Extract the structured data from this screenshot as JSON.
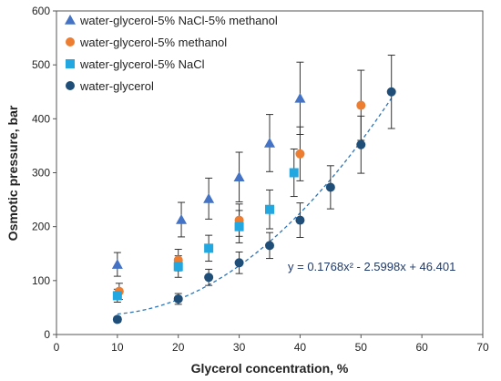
{
  "chart_data": {
    "type": "scatter",
    "xlabel": "Glycerol concentration, %",
    "ylabel": "Osmotic pressure, bar",
    "xlim": [
      0,
      70
    ],
    "ylim": [
      0,
      600
    ],
    "xticks": [
      0,
      10,
      20,
      30,
      40,
      50,
      60,
      70
    ],
    "yticks": [
      0,
      100,
      200,
      300,
      400,
      500,
      600
    ],
    "grid": false,
    "legend_position": "top-left",
    "series": [
      {
        "name": "water-glycerol-5% NaCl-5% methanol",
        "marker": "triangle",
        "color": "#4472c4",
        "x": [
          10,
          20.5,
          25,
          30,
          35,
          40
        ],
        "y": [
          130,
          213,
          252,
          292,
          355,
          438
        ],
        "error": [
          22,
          32,
          38,
          46,
          53,
          67
        ]
      },
      {
        "name": "water-glycerol-5% methanol",
        "marker": "circle",
        "color": "#ed7d31",
        "x": [
          10.3,
          20,
          30,
          40,
          50
        ],
        "y": [
          80,
          138,
          212,
          335,
          425
        ],
        "error": [
          15,
          20,
          30,
          50,
          65
        ]
      },
      {
        "name": "water-glycerol-5% NaCl",
        "marker": "square",
        "color": "#22a7e0",
        "x": [
          10,
          20,
          25,
          30,
          35,
          39
        ],
        "y": [
          72,
          126,
          160,
          200,
          232,
          300
        ],
        "error": [
          12,
          20,
          24,
          30,
          36,
          44
        ]
      },
      {
        "name": "water-glycerol",
        "marker": "circle",
        "color": "#1f4e79",
        "x": [
          10,
          20,
          25,
          30,
          35,
          40,
          45,
          50,
          55
        ],
        "y": [
          28,
          66,
          106,
          133,
          165,
          212,
          273,
          352,
          450
        ],
        "error": [
          5,
          10,
          15,
          20,
          24,
          32,
          40,
          53,
          68
        ]
      }
    ],
    "trendline": {
      "series": "water-glycerol",
      "equation": "y = 0.1768x² - 2.5998x + 46.401",
      "a": 0.1768,
      "b": -2.5998,
      "c": 46.401,
      "x_range": [
        10,
        55
      ],
      "color": "#2e75b6",
      "style": "dashed"
    }
  }
}
